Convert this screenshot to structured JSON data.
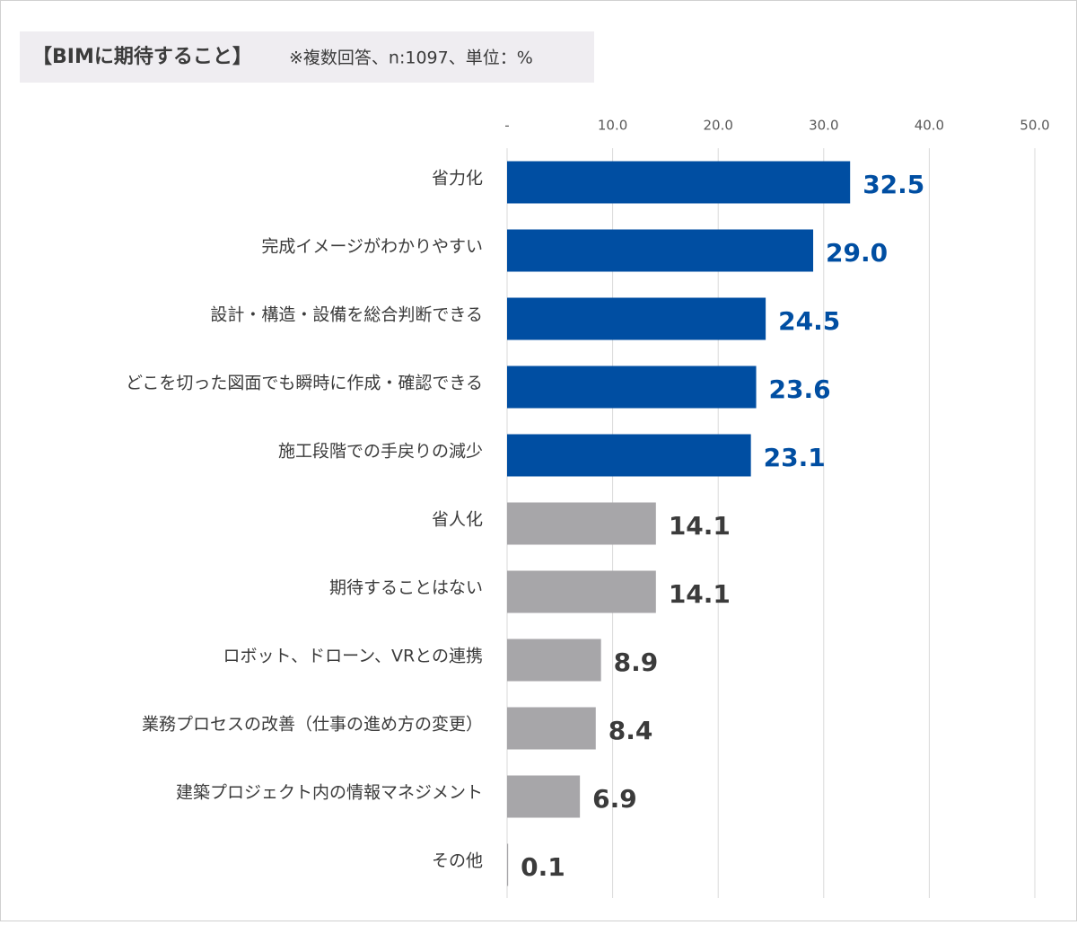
{
  "chart_data": {
    "type": "bar",
    "orientation": "horizontal",
    "title": "【BIMに期待すること】",
    "subtitle": "※複数回答、n:1097、単位：%",
    "categories": [
      "省力化",
      "完成イメージがわかりやすい",
      "設計・構造・設備を総合判断できる",
      "どこを切った図面でも瞬時に作成・確認できる",
      "施工段階での手戻りの減少",
      "省人化",
      "期待することはない",
      "ロボット、ドローン、VRとの連携",
      "業務プロセスの改善（仕事の進め方の変更）",
      "建築プロジェクト内の情報マネジメント",
      "その他"
    ],
    "values": [
      32.5,
      29.0,
      24.5,
      23.6,
      23.1,
      14.1,
      14.1,
      8.9,
      8.4,
      6.9,
      0.1
    ],
    "value_labels": [
      "32.5",
      "29.0",
      "24.5",
      "23.6",
      "23.1",
      "14.1",
      "14.1",
      "8.9",
      "8.4",
      "6.9",
      "0.1"
    ],
    "colors": [
      "#004ea2",
      "#004ea2",
      "#004ea2",
      "#004ea2",
      "#004ea2",
      "#a7a6a9",
      "#a7a6a9",
      "#a7a6a9",
      "#a7a6a9",
      "#a7a6a9",
      "#a7a6a9"
    ],
    "value_label_colors": [
      "#004ea2",
      "#004ea2",
      "#004ea2",
      "#004ea2",
      "#004ea2",
      "#3b3b3b",
      "#3b3b3b",
      "#3b3b3b",
      "#3b3b3b",
      "#3b3b3b",
      "#3b3b3b"
    ],
    "xlim": [
      0,
      50
    ],
    "xticks": [
      {
        "value": 0,
        "label": "-"
      },
      {
        "value": 10,
        "label": "10.0"
      },
      {
        "value": 20,
        "label": "20.0"
      },
      {
        "value": 30,
        "label": "30.0"
      },
      {
        "value": 40,
        "label": "40.0"
      },
      {
        "value": 50,
        "label": "50.0"
      }
    ],
    "grid": true
  }
}
